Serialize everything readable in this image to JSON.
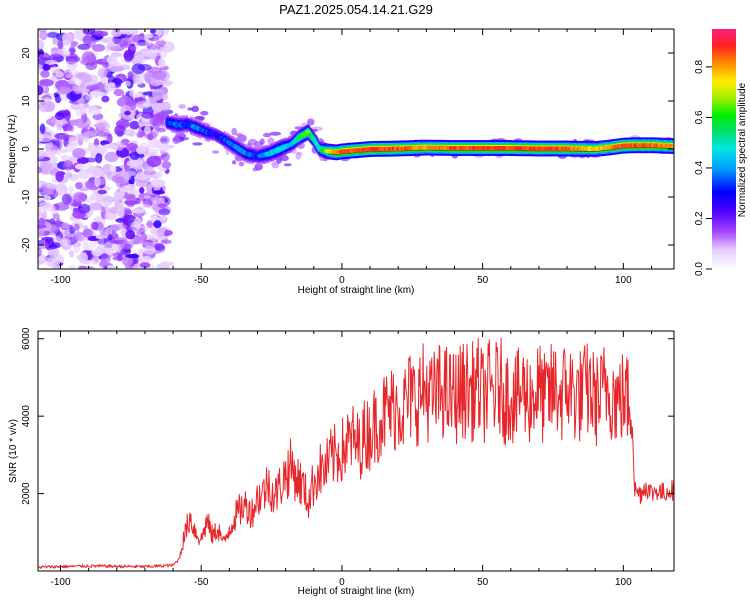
{
  "figure": {
    "title": "PAZ1.2025.054.14.21.G29"
  },
  "colors": {
    "snr_line": "#e8262a",
    "track_dark": "#111111",
    "axis": "#000000"
  },
  "chart_data": [
    {
      "type": "heatmap",
      "name": "spectrogram",
      "title": "PAZ1.2025.054.14.21.G29",
      "xlabel": "Height of straight line (km)",
      "ylabel": "Frequency (Hz)",
      "xlim": [
        -108,
        118
      ],
      "ylim": [
        -25,
        25
      ],
      "x_ticks": [
        -100,
        -50,
        0,
        50,
        100
      ],
      "y_ticks": [
        -20,
        -10,
        0,
        10,
        20
      ],
      "grid": false,
      "colorbar": {
        "label": "Normalized spectral amplitude",
        "range": [
          0,
          0.95
        ],
        "ticks": [
          "0.0",
          "0.2",
          "0.4",
          "0.6",
          "0.8"
        ],
        "colormap": "rainbow"
      },
      "noise_region_x": [
        -108,
        -62
      ],
      "ridge": {
        "height_km": [
          -62,
          -58,
          -55,
          -52,
          -48,
          -45,
          -42,
          -38,
          -34,
          -30,
          -26,
          -22,
          -18,
          -15,
          -12,
          -10,
          -8,
          -5,
          -2,
          0,
          10,
          20,
          30,
          40,
          50,
          60,
          70,
          80,
          90,
          95,
          100,
          105,
          110,
          118
        ],
        "frequency_hz": [
          5.5,
          5.0,
          5.2,
          4.5,
          3.5,
          3.0,
          2.0,
          0.5,
          -1.0,
          -1.5,
          -1.0,
          0.0,
          1.0,
          2.5,
          3.5,
          2.0,
          0.0,
          -0.5,
          -0.7,
          -0.5,
          0.0,
          0.1,
          0.3,
          0.2,
          0.2,
          0.2,
          0.1,
          0.1,
          0.0,
          0.3,
          0.7,
          0.8,
          0.8,
          0.6
        ],
        "amplitude": [
          0.35,
          0.4,
          0.35,
          0.4,
          0.35,
          0.3,
          0.35,
          0.4,
          0.4,
          0.35,
          0.45,
          0.5,
          0.45,
          0.6,
          0.7,
          0.55,
          0.5,
          0.75,
          0.85,
          0.9,
          0.92,
          0.9,
          0.85,
          0.9,
          0.92,
          0.9,
          0.92,
          0.9,
          0.8,
          0.85,
          0.92,
          0.9,
          0.9,
          0.85
        ]
      }
    },
    {
      "type": "line",
      "name": "snr",
      "xlabel": "Height of straight line (km)",
      "ylabel": "SNR (10 * v/v)",
      "xlim": [
        -108,
        118
      ],
      "ylim": [
        0,
        6200
      ],
      "x_ticks": [
        -100,
        -50,
        0,
        50,
        100
      ],
      "y_ticks": [
        2000,
        4000,
        6000
      ],
      "grid": false,
      "series": [
        {
          "x": [
            -108,
            -90,
            -70,
            -60,
            -58,
            -56,
            -54,
            -52,
            -50,
            -48,
            -46,
            -44,
            -42,
            -40,
            -38,
            -36,
            -34,
            -32,
            -30,
            -28,
            -26,
            -24,
            -22,
            -20,
            -18,
            -16,
            -14,
            -12,
            -10,
            -8,
            -6,
            -4,
            -2,
            0,
            2,
            4,
            6,
            8,
            10,
            12,
            14,
            16,
            18,
            20,
            22,
            24,
            26,
            28,
            30,
            32,
            34,
            36,
            38,
            40,
            42,
            44,
            46,
            48,
            50,
            52,
            54,
            56,
            58,
            60,
            62,
            64,
            66,
            68,
            70,
            72,
            74,
            76,
            78,
            80,
            82,
            84,
            86,
            88,
            90,
            92,
            94,
            96,
            98,
            100,
            102,
            103,
            104,
            106,
            108,
            110,
            112,
            114,
            116,
            118
          ],
          "y": [
            100,
            130,
            110,
            150,
            300,
            900,
            1400,
            1000,
            800,
            1300,
            900,
            1100,
            700,
            1100,
            1400,
            1600,
            1700,
            1500,
            1900,
            2000,
            2300,
            1900,
            2200,
            2500,
            2700,
            2400,
            2200,
            1800,
            2300,
            2600,
            2600,
            2900,
            3000,
            3100,
            3300,
            3400,
            3200,
            3500,
            3600,
            3800,
            4000,
            4100,
            4200,
            4300,
            4200,
            4500,
            4400,
            4600,
            4700,
            4400,
            4600,
            4700,
            4500,
            4500,
            4600,
            4700,
            4600,
            4800,
            4500,
            4700,
            4600,
            4800,
            4500,
            4600,
            4400,
            4700,
            4500,
            4500,
            4700,
            4400,
            4600,
            4700,
            4500,
            4800,
            4600,
            4500,
            4600,
            4700,
            4400,
            4500,
            4800,
            4600,
            4400,
            4500,
            4400,
            4300,
            2100,
            2000,
            2200,
            2000,
            2100,
            2000,
            2100,
            2100
          ]
        }
      ]
    }
  ]
}
